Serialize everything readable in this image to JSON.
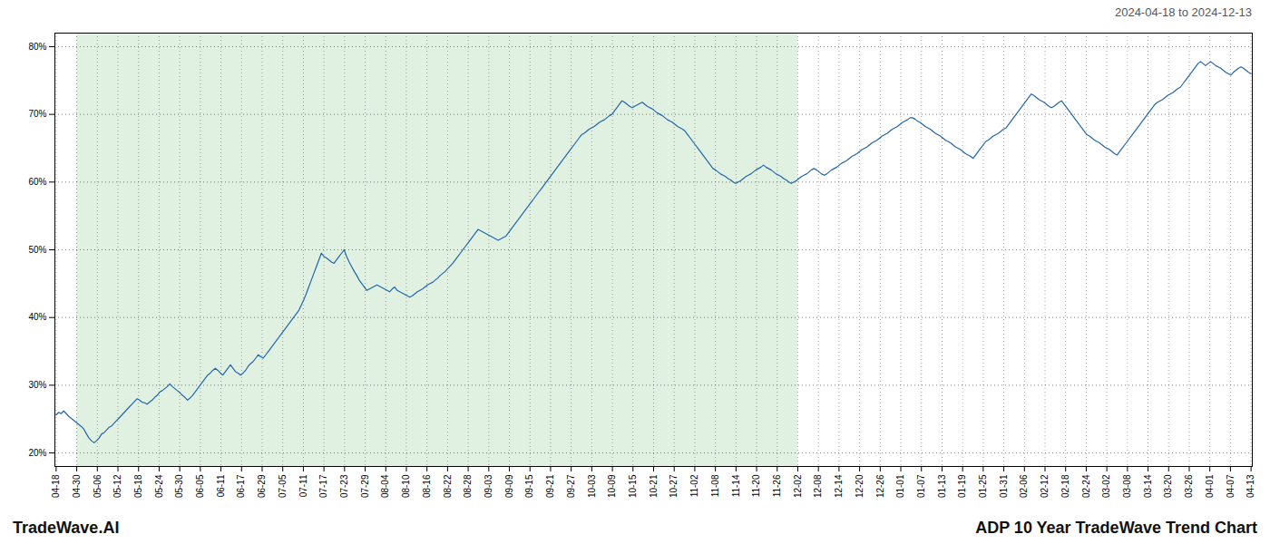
{
  "chart_data": {
    "type": "line",
    "title": "ADP 10 Year TradeWave Trend Chart",
    "subtitle": "2024-04-18 to 2024-12-13",
    "caption": "TradeWave.AI",
    "color": "#2166ac",
    "grid": true,
    "ylim": [
      0.18,
      0.82
    ],
    "yticks": [
      {
        "value": 0.2,
        "label": "20%"
      },
      {
        "value": 0.3,
        "label": "30%"
      },
      {
        "value": 0.4,
        "label": "40%"
      },
      {
        "value": 0.5,
        "label": "50%"
      },
      {
        "value": 0.6,
        "label": "60%"
      },
      {
        "value": 0.7,
        "label": "70%"
      },
      {
        "value": 0.8,
        "label": "80%"
      }
    ],
    "x_labels": [
      "04-18",
      "04-30",
      "05-06",
      "05-12",
      "05-18",
      "05-24",
      "05-30",
      "06-05",
      "06-11",
      "06-17",
      "06-29",
      "07-05",
      "07-11",
      "07-17",
      "07-23",
      "07-29",
      "08-04",
      "08-10",
      "08-16",
      "08-22",
      "08-28",
      "09-03",
      "09-09",
      "09-15",
      "09-21",
      "09-27",
      "10-03",
      "10-09",
      "10-15",
      "10-21",
      "10-27",
      "11-02",
      "11-08",
      "11-14",
      "11-20",
      "11-26",
      "12-02",
      "12-08",
      "12-14",
      "12-20",
      "12-26",
      "01-01",
      "01-07",
      "01-13",
      "01-19",
      "01-25",
      "01-31",
      "02-06",
      "02-12",
      "02-18",
      "02-24",
      "03-02",
      "03-08",
      "03-14",
      "03-20",
      "03-26",
      "04-01",
      "04-07",
      "04-13"
    ],
    "shaded": {
      "start": "04-30",
      "end": "12-02",
      "color": "#c8e6c8"
    },
    "values": [
      0.256,
      0.26,
      0.258,
      0.262,
      0.258,
      0.254,
      0.251,
      0.248,
      0.245,
      0.242,
      0.239,
      0.235,
      0.228,
      0.222,
      0.218,
      0.215,
      0.218,
      0.222,
      0.228,
      0.23,
      0.234,
      0.238,
      0.24,
      0.244,
      0.248,
      0.252,
      0.256,
      0.26,
      0.264,
      0.268,
      0.272,
      0.276,
      0.28,
      0.278,
      0.275,
      0.274,
      0.272,
      0.275,
      0.278,
      0.282,
      0.285,
      0.29,
      0.292,
      0.295,
      0.298,
      0.302,
      0.298,
      0.295,
      0.292,
      0.289,
      0.285,
      0.282,
      0.278,
      0.281,
      0.285,
      0.29,
      0.295,
      0.3,
      0.305,
      0.31,
      0.315,
      0.318,
      0.322,
      0.325,
      0.322,
      0.318,
      0.315,
      0.32,
      0.325,
      0.33,
      0.325,
      0.32,
      0.318,
      0.315,
      0.318,
      0.322,
      0.328,
      0.332,
      0.335,
      0.34,
      0.345,
      0.342,
      0.34,
      0.345,
      0.35,
      0.355,
      0.36,
      0.365,
      0.37,
      0.375,
      0.38,
      0.385,
      0.39,
      0.395,
      0.4,
      0.405,
      0.41,
      0.418,
      0.426,
      0.435,
      0.445,
      0.455,
      0.465,
      0.475,
      0.485,
      0.495,
      0.49,
      0.488,
      0.485,
      0.482,
      0.48,
      0.485,
      0.49,
      0.495,
      0.5,
      0.49,
      0.482,
      0.475,
      0.468,
      0.462,
      0.455,
      0.45,
      0.445,
      0.44,
      0.442,
      0.444,
      0.446,
      0.448,
      0.446,
      0.444,
      0.442,
      0.44,
      0.438,
      0.442,
      0.445,
      0.44,
      0.438,
      0.436,
      0.434,
      0.432,
      0.43,
      0.432,
      0.435,
      0.438,
      0.44,
      0.442,
      0.445,
      0.448,
      0.45,
      0.452,
      0.455,
      0.458,
      0.462,
      0.465,
      0.468,
      0.472,
      0.476,
      0.48,
      0.485,
      0.49,
      0.495,
      0.5,
      0.505,
      0.51,
      0.515,
      0.52,
      0.525,
      0.53,
      0.528,
      0.526,
      0.524,
      0.522,
      0.52,
      0.518,
      0.516,
      0.514,
      0.516,
      0.518,
      0.52,
      0.525,
      0.53,
      0.535,
      0.54,
      0.545,
      0.55,
      0.555,
      0.56,
      0.565,
      0.57,
      0.575,
      0.58,
      0.585,
      0.59,
      0.595,
      0.6,
      0.605,
      0.61,
      0.615,
      0.62,
      0.625,
      0.63,
      0.635,
      0.64,
      0.645,
      0.65,
      0.655,
      0.66,
      0.665,
      0.67,
      0.672,
      0.675,
      0.678,
      0.68,
      0.682,
      0.685,
      0.688,
      0.69,
      0.692,
      0.695,
      0.698,
      0.7,
      0.705,
      0.71,
      0.715,
      0.72,
      0.718,
      0.715,
      0.712,
      0.71,
      0.712,
      0.714,
      0.716,
      0.718,
      0.715,
      0.712,
      0.71,
      0.708,
      0.705,
      0.702,
      0.7,
      0.698,
      0.695,
      0.692,
      0.69,
      0.688,
      0.685,
      0.682,
      0.68,
      0.678,
      0.675,
      0.67,
      0.665,
      0.66,
      0.655,
      0.65,
      0.645,
      0.64,
      0.635,
      0.63,
      0.625,
      0.62,
      0.618,
      0.615,
      0.612,
      0.61,
      0.608,
      0.605,
      0.603,
      0.6,
      0.598,
      0.6,
      0.602,
      0.605,
      0.608,
      0.61,
      0.612,
      0.615,
      0.618,
      0.62,
      0.622,
      0.625,
      0.622,
      0.62,
      0.618,
      0.615,
      0.612,
      0.61,
      0.608,
      0.605,
      0.603,
      0.6,
      0.598,
      0.6,
      0.602,
      0.605,
      0.608,
      0.61,
      0.612,
      0.615,
      0.618,
      0.62,
      0.618,
      0.615,
      0.612,
      0.61,
      0.612,
      0.615,
      0.618,
      0.62,
      0.622,
      0.625,
      0.628,
      0.63,
      0.632,
      0.635,
      0.638,
      0.64,
      0.642,
      0.645,
      0.648,
      0.65,
      0.652,
      0.655,
      0.658,
      0.66,
      0.662,
      0.665,
      0.668,
      0.67,
      0.672,
      0.675,
      0.678,
      0.68,
      0.682,
      0.685,
      0.688,
      0.69,
      0.692,
      0.695,
      0.695,
      0.693,
      0.69,
      0.688,
      0.685,
      0.682,
      0.68,
      0.678,
      0.675,
      0.672,
      0.67,
      0.668,
      0.665,
      0.662,
      0.66,
      0.658,
      0.655,
      0.652,
      0.65,
      0.648,
      0.645,
      0.642,
      0.64,
      0.638,
      0.635,
      0.64,
      0.645,
      0.65,
      0.655,
      0.66,
      0.662,
      0.665,
      0.668,
      0.67,
      0.672,
      0.675,
      0.678,
      0.68,
      0.685,
      0.69,
      0.695,
      0.7,
      0.705,
      0.71,
      0.715,
      0.72,
      0.725,
      0.73,
      0.728,
      0.725,
      0.722,
      0.72,
      0.718,
      0.715,
      0.712,
      0.71,
      0.712,
      0.715,
      0.718,
      0.72,
      0.715,
      0.71,
      0.705,
      0.7,
      0.695,
      0.69,
      0.685,
      0.68,
      0.675,
      0.67,
      0.668,
      0.665,
      0.662,
      0.66,
      0.658,
      0.655,
      0.652,
      0.65,
      0.648,
      0.645,
      0.642,
      0.64,
      0.645,
      0.65,
      0.655,
      0.66,
      0.665,
      0.67,
      0.675,
      0.68,
      0.685,
      0.69,
      0.695,
      0.7,
      0.705,
      0.71,
      0.715,
      0.718,
      0.72,
      0.722,
      0.725,
      0.728,
      0.73,
      0.732,
      0.735,
      0.738,
      0.74,
      0.745,
      0.75,
      0.755,
      0.76,
      0.765,
      0.77,
      0.775,
      0.778,
      0.775,
      0.772,
      0.775,
      0.778,
      0.775,
      0.772,
      0.77,
      0.768,
      0.765,
      0.762,
      0.76,
      0.758,
      0.762,
      0.765,
      0.768,
      0.77,
      0.768,
      0.765,
      0.762,
      0.76
    ]
  }
}
